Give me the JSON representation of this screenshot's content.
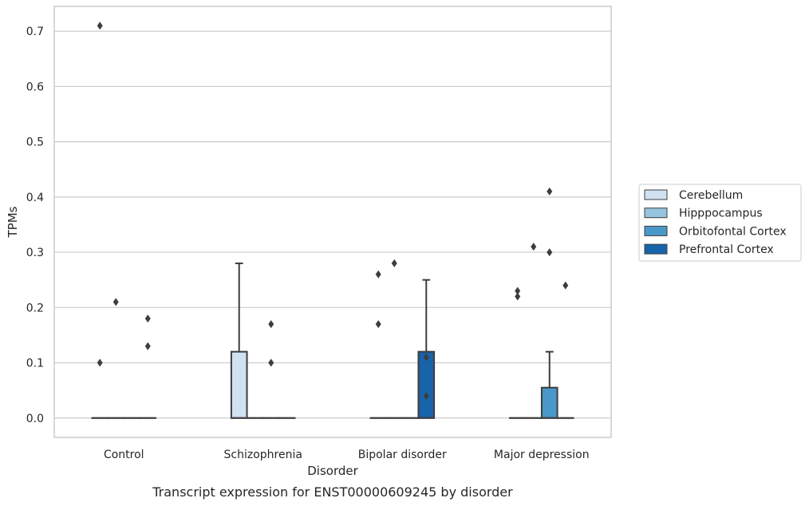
{
  "chart_data": {
    "type": "box",
    "xlabel": "Disorder",
    "ylabel": "TPMs",
    "caption": "Transcript expression for ENST00000609245 by disorder",
    "categories": [
      "Control",
      "Schizophrenia",
      "Bipolar disorder",
      "Major depression"
    ],
    "ylim": [
      -0.035,
      0.745
    ],
    "yticks": [
      0.0,
      0.1,
      0.2,
      0.3,
      0.4,
      0.5,
      0.6,
      0.7
    ],
    "ytick_labels": [
      "0.0",
      "0.1",
      "0.2",
      "0.3",
      "0.4",
      "0.5",
      "0.6",
      "0.7"
    ],
    "grid": true,
    "legend_position": "right",
    "series": [
      {
        "name": "Cerebellum",
        "color": "#d0e1f2",
        "boxes": [
          {
            "category": "Control",
            "q1": 0,
            "median": 0,
            "q3": 0,
            "whisker_low": 0,
            "whisker_high": 0,
            "outliers": [
              0.1,
              0.71
            ]
          },
          {
            "category": "Schizophrenia",
            "q1": 0,
            "median": 0,
            "q3": 0.12,
            "whisker_low": 0,
            "whisker_high": 0.28,
            "outliers": []
          },
          {
            "category": "Bipolar disorder",
            "q1": 0,
            "median": 0,
            "q3": 0,
            "whisker_low": 0,
            "whisker_high": 0,
            "outliers": [
              0.17,
              0.26
            ]
          },
          {
            "category": "Major depression",
            "q1": 0,
            "median": 0,
            "q3": 0,
            "whisker_low": 0,
            "whisker_high": 0,
            "outliers": [
              0.22,
              0.23
            ]
          }
        ]
      },
      {
        "name": "Hipppocampus",
        "color": "#94c4df",
        "boxes": [
          {
            "category": "Control",
            "q1": 0,
            "median": 0,
            "q3": 0,
            "whisker_low": 0,
            "whisker_high": 0,
            "outliers": [
              0.21
            ]
          },
          {
            "category": "Schizophrenia",
            "q1": 0,
            "median": 0,
            "q3": 0,
            "whisker_low": 0,
            "whisker_high": 0,
            "outliers": []
          },
          {
            "category": "Bipolar disorder",
            "q1": 0,
            "median": 0,
            "q3": 0,
            "whisker_low": 0,
            "whisker_high": 0,
            "outliers": [
              0.28
            ]
          },
          {
            "category": "Major depression",
            "q1": 0,
            "median": 0,
            "q3": 0,
            "whisker_low": 0,
            "whisker_high": 0,
            "outliers": [
              0.31
            ]
          }
        ]
      },
      {
        "name": "Orbitofontal Cortex",
        "color": "#4a98c9",
        "boxes": [
          {
            "category": "Control",
            "q1": 0,
            "median": 0,
            "q3": 0,
            "whisker_low": 0,
            "whisker_high": 0,
            "outliers": []
          },
          {
            "category": "Schizophrenia",
            "q1": 0,
            "median": 0,
            "q3": 0,
            "whisker_low": 0,
            "whisker_high": 0,
            "outliers": [
              0.1,
              0.17
            ]
          },
          {
            "category": "Bipolar disorder",
            "q1": 0,
            "median": 0,
            "q3": 0,
            "whisker_low": 0,
            "whisker_high": 0,
            "outliers": []
          },
          {
            "category": "Major depression",
            "q1": 0,
            "median": 0,
            "q3": 0.055,
            "whisker_low": 0,
            "whisker_high": 0.12,
            "outliers": [
              0.3,
              0.41
            ]
          }
        ]
      },
      {
        "name": "Prefrontal Cortex",
        "color": "#1764ab",
        "boxes": [
          {
            "category": "Control",
            "q1": 0,
            "median": 0,
            "q3": 0,
            "whisker_low": 0,
            "whisker_high": 0,
            "outliers": [
              0.13,
              0.18
            ]
          },
          {
            "category": "Schizophrenia",
            "q1": 0,
            "median": 0,
            "q3": 0,
            "whisker_low": 0,
            "whisker_high": 0,
            "outliers": []
          },
          {
            "category": "Bipolar disorder",
            "q1": 0,
            "median": 0,
            "q3": 0.12,
            "whisker_low": 0,
            "whisker_high": 0.25,
            "outliers": [
              0.04,
              0.11
            ]
          },
          {
            "category": "Major depression",
            "q1": 0,
            "median": 0,
            "q3": 0,
            "whisker_low": 0,
            "whisker_high": 0,
            "outliers": [
              0.24
            ]
          }
        ]
      }
    ]
  }
}
